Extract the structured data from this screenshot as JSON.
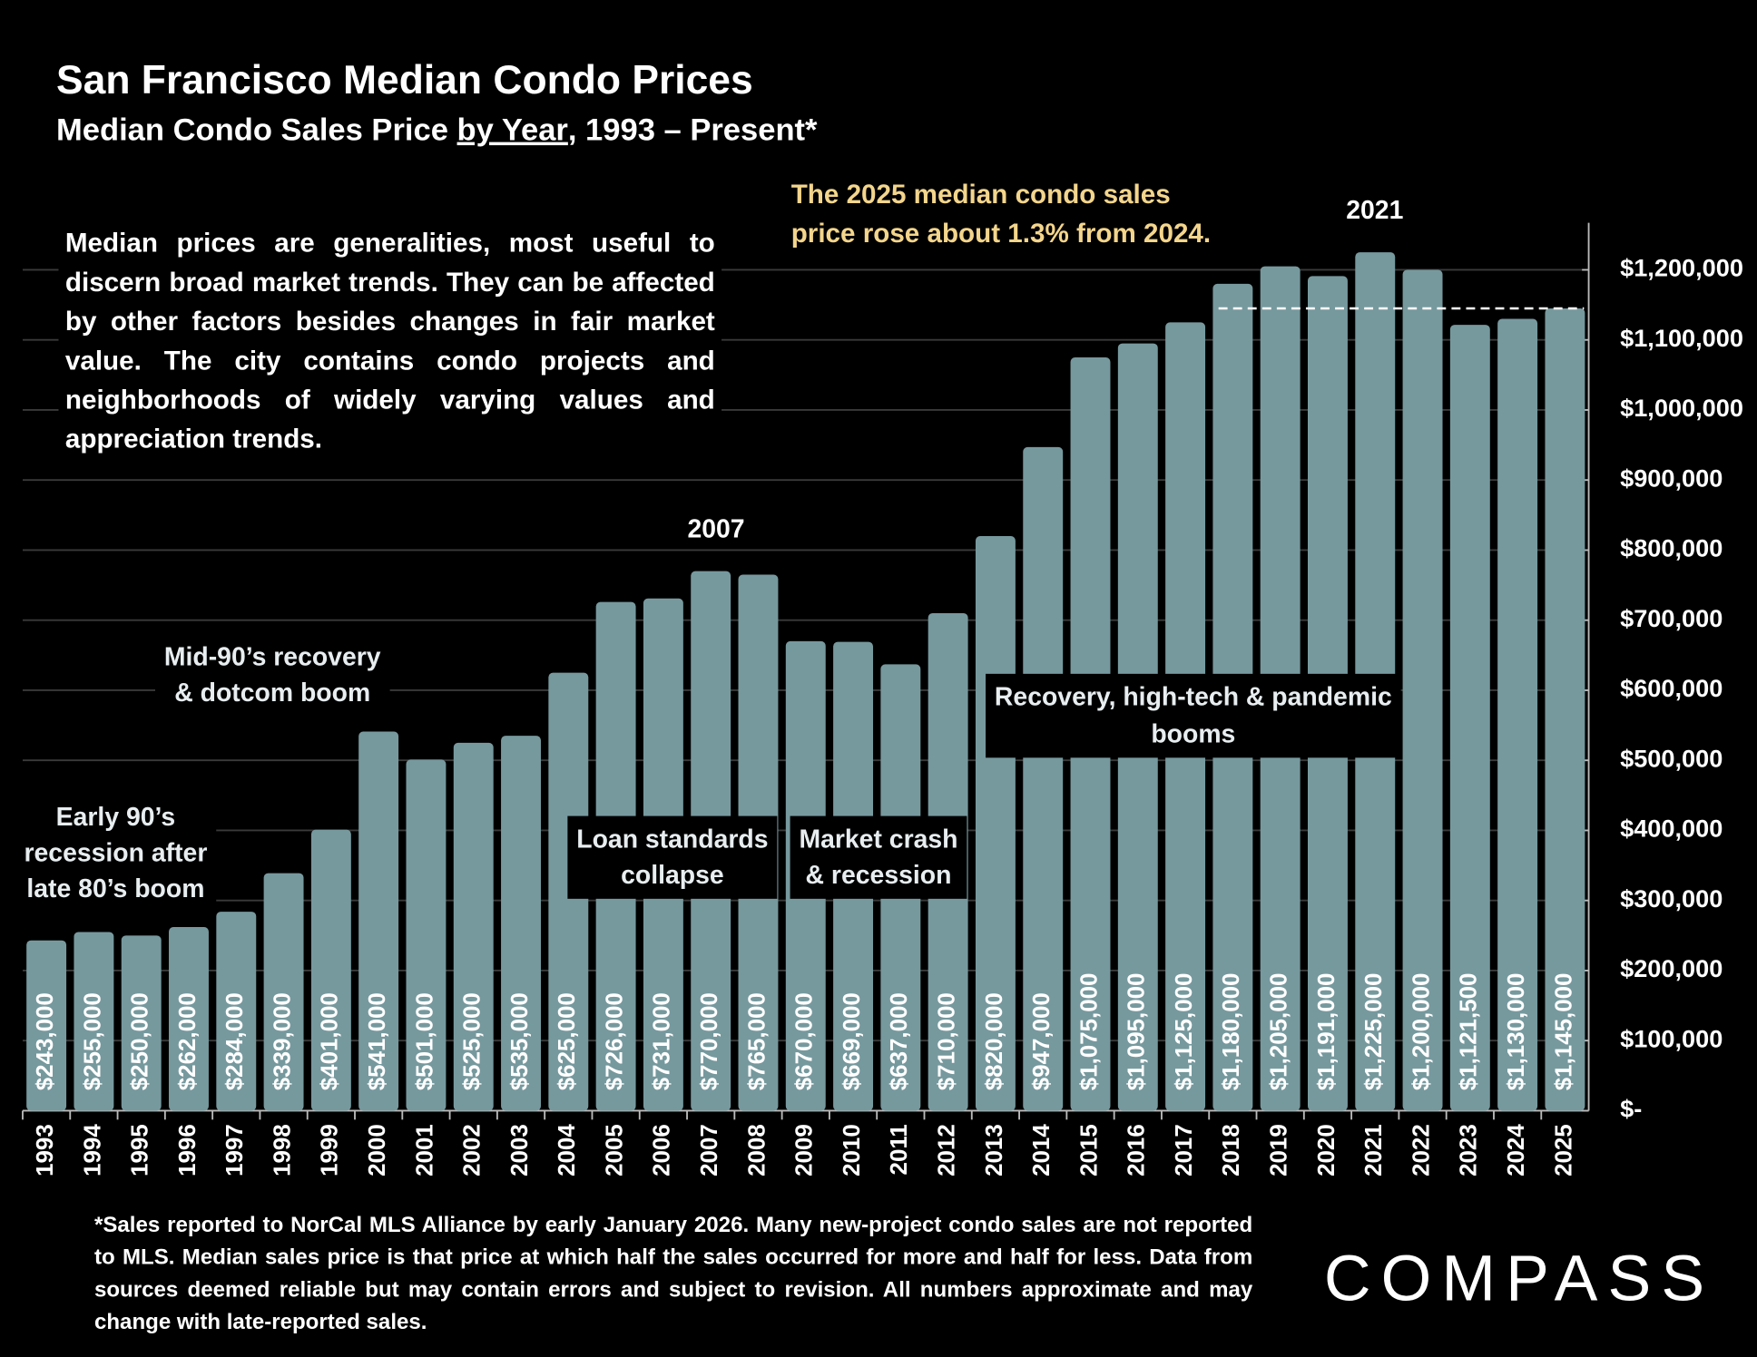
{
  "chart_data": {
    "type": "bar",
    "title": "San Francisco Median Condo Prices",
    "subtitle": {
      "before": "Median Condo Sales Price ",
      "underlined": "by Year",
      "after": ", 1993 – Present*"
    },
    "note": "Median prices are generalities, most useful to discern broad market trends. They can be affected by other factors besides changes in fair market value. The city contains condo projects and neighborhoods of widely varying values and appreciation trends.",
    "highlight": [
      "The 2025 median condo sales",
      "price rose about 1.3% from 2024."
    ],
    "peak_labels": [
      "2007",
      "2021"
    ],
    "annotations": [
      [
        "Early 90’s",
        "recession after",
        "late 80’s boom"
      ],
      [
        "Mid-90’s recovery",
        "& dotcom boom"
      ],
      [
        "Loan standards",
        "collapse"
      ],
      [
        "Market crash",
        "& recession"
      ],
      [
        "Recovery, high-tech & pandemic",
        "booms"
      ]
    ],
    "categories": [
      "1993",
      "1994",
      "1995",
      "1996",
      "1997",
      "1998",
      "1999",
      "2000",
      "2001",
      "2002",
      "2003",
      "2004",
      "2005",
      "2006",
      "2007",
      "2008",
      "2009",
      "2010",
      "2011",
      "2012",
      "2013",
      "2014",
      "2015",
      "2016",
      "2017",
      "2018",
      "2019",
      "2020",
      "2021",
      "2022",
      "2023",
      "2024",
      "2025"
    ],
    "values": [
      243000,
      255000,
      250000,
      262000,
      284000,
      339000,
      401000,
      541000,
      501000,
      525000,
      535000,
      625000,
      726000,
      731000,
      770000,
      765000,
      670000,
      669000,
      637000,
      710000,
      820000,
      947000,
      1075000,
      1095000,
      1125000,
      1180000,
      1205000,
      1191000,
      1225000,
      1200000,
      1121500,
      1130000,
      1145000
    ],
    "value_labels": [
      "$243,000",
      "$255,000",
      "$250,000",
      "$262,000",
      "$284,000",
      "$339,000",
      "$401,000",
      "$541,000",
      "$501,000",
      "$525,000",
      "$535,000",
      "$625,000",
      "$726,000",
      "$731,000",
      "$770,000",
      "$765,000",
      "$670,000",
      "$669,000",
      "$637,000",
      "$710,000",
      "$820,000",
      "$947,000",
      "$1,075,000",
      "$1,095,000",
      "$1,125,000",
      "$1,180,000",
      "$1,205,000",
      "$1,191,000",
      "$1,225,000",
      "$1,200,000",
      "$1,121,500",
      "$1,130,000",
      "$1,145,000"
    ],
    "color": "#76999e",
    "ylim": [
      0,
      1200000
    ],
    "yticks": [
      {
        "value": 0,
        "label": "$-"
      },
      {
        "value": 100000,
        "label": "$100,000"
      },
      {
        "value": 200000,
        "label": "$200,000"
      },
      {
        "value": 300000,
        "label": "$300,000"
      },
      {
        "value": 400000,
        "label": "$400,000"
      },
      {
        "value": 500000,
        "label": "$500,000"
      },
      {
        "value": 600000,
        "label": "$600,000"
      },
      {
        "value": 700000,
        "label": "$700,000"
      },
      {
        "value": 800000,
        "label": "$800,000"
      },
      {
        "value": 900000,
        "label": "$900,000"
      },
      {
        "value": 1000000,
        "label": "$1,000,000"
      },
      {
        "value": 1100000,
        "label": "$1,100,000"
      },
      {
        "value": 1200000,
        "label": "$1,200,000"
      }
    ],
    "y_axis_side": "right",
    "grid": true,
    "reference_line": {
      "value": 1145000,
      "start": "2018"
    },
    "footnote": "*Sales reported to NorCal MLS Alliance by early January 2026. Many new-project condo sales are not reported to MLS. Median sales price is that price at which half the sales occurred for more and half for less. Data from sources deemed reliable but may contain errors and subject to revision. All numbers approximate and may change with late-reported sales.",
    "logo": "COMPASS"
  }
}
